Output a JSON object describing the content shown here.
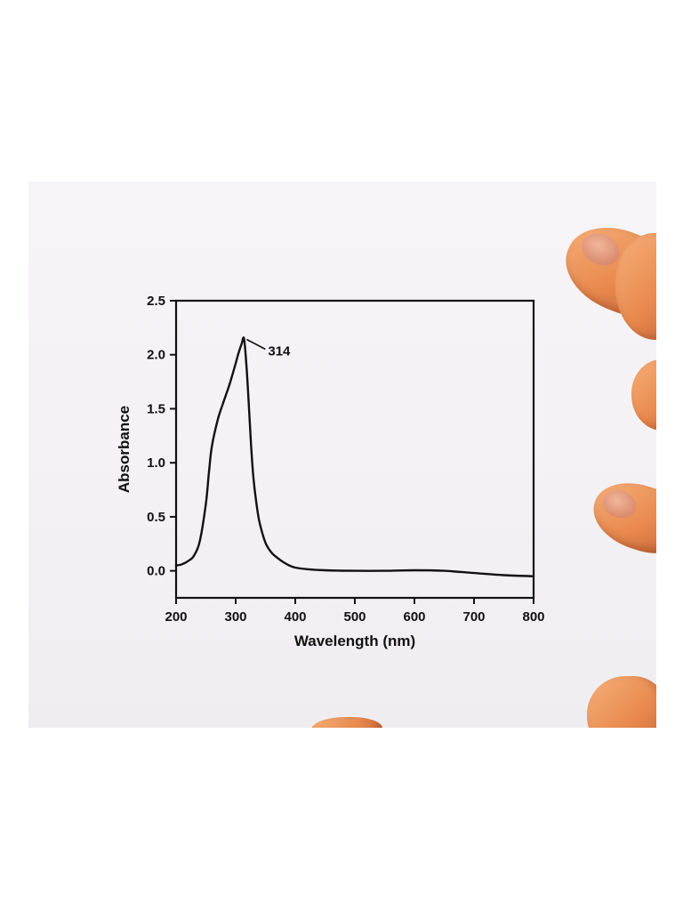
{
  "chart_data": {
    "type": "line",
    "title": "",
    "xlabel": "Wavelength (nm)",
    "ylabel": "Absorbance",
    "xlim": [
      200,
      800
    ],
    "ylim": [
      -0.25,
      2.5
    ],
    "xticks": [
      200,
      300,
      400,
      500,
      600,
      700,
      800
    ],
    "yticks": [
      0.0,
      0.5,
      1.0,
      1.5,
      2.0,
      2.5
    ],
    "xtick_labels": [
      "200",
      "300",
      "400",
      "500",
      "600",
      "700",
      "800"
    ],
    "ytick_labels": [
      "0.0",
      "0.5",
      "1.0",
      "1.5",
      "2.0",
      "2.5"
    ],
    "grid": false,
    "legend": "none",
    "series": [
      {
        "color": "#111111",
        "x": [
          200,
          210,
          220,
          230,
          240,
          250,
          255,
          260,
          270,
          280,
          290,
          300,
          305,
          310,
          314,
          318,
          322,
          326,
          330,
          335,
          340,
          350,
          360,
          370,
          380,
          390,
          400,
          420,
          450,
          500,
          550,
          600,
          650,
          700,
          750,
          800
        ],
        "y": [
          0.05,
          0.06,
          0.09,
          0.14,
          0.28,
          0.62,
          0.9,
          1.15,
          1.4,
          1.57,
          1.73,
          1.92,
          2.02,
          2.1,
          2.15,
          1.9,
          1.55,
          1.15,
          0.85,
          0.62,
          0.45,
          0.26,
          0.17,
          0.12,
          0.08,
          0.05,
          0.03,
          0.015,
          0.005,
          0.0,
          0.0,
          0.005,
          0.0,
          -0.02,
          -0.04,
          -0.05
        ]
      }
    ],
    "annotations": [
      {
        "text": "314",
        "x": 314,
        "y": 2.15
      }
    ]
  }
}
